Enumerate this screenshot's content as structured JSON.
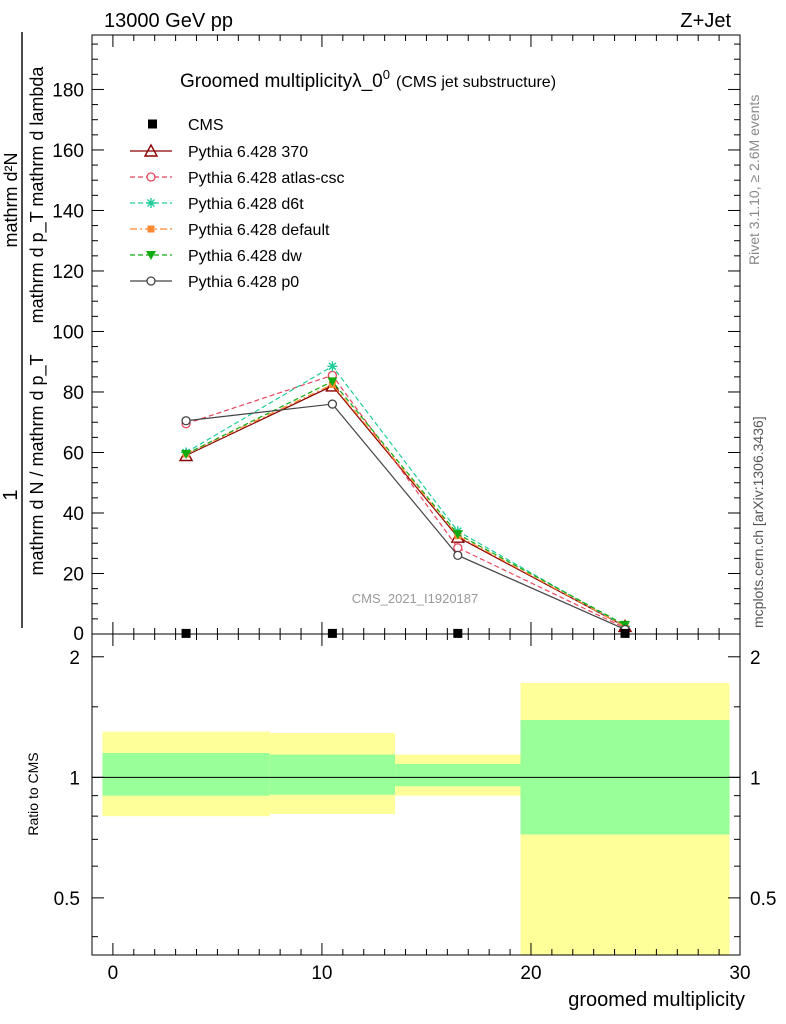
{
  "header": {
    "energy": "13000 GeV pp",
    "process": "Z+Jet"
  },
  "side_labels": {
    "rivet": "Rivet 3.1.10, ≥ 2.6M events",
    "mcplots": "mcplots.cern.ch [arXiv:1306.3436]"
  },
  "watermark": "CMS_2021_I1920187",
  "colors": {
    "band_inner": "#99ff99",
    "band_outer": "#ffff99",
    "cms": "#000000",
    "p370": "#8b0000",
    "atlas": "#e8445a",
    "d6t": "#1fcc99",
    "default": "#ff8833",
    "dw": "#11aa11",
    "p0": "#444444"
  },
  "chart_data": [
    {
      "type": "line",
      "title": "Groomed multiplicityλ_0",
      "title_sup": "0",
      "subtitle": "(CMS jet substructure)",
      "ylabel_num": "mathrm d²N",
      "ylabel_den": "mathrm d p_T mathrm d lambda",
      "ylabel_pre": "mathrm d N / mathrm d p_T",
      "ylabel_one": "1",
      "xlim": [
        -1,
        30
      ],
      "ylim": [
        0,
        198
      ],
      "yticks": [
        {
          "v": 20,
          "label": "20"
        },
        {
          "v": 40,
          "label": "40"
        },
        {
          "v": 60,
          "label": "60"
        },
        {
          "v": 80,
          "label": "80"
        },
        {
          "v": 100,
          "label": "100"
        },
        {
          "v": 120,
          "label": "120"
        },
        {
          "v": 140,
          "label": "140"
        },
        {
          "v": 160,
          "label": "160"
        },
        {
          "v": 180,
          "label": "180"
        }
      ],
      "y_zero_label": "0",
      "bins": [
        [
          -0.5,
          7.5
        ],
        [
          7.5,
          13.5
        ],
        [
          13.5,
          19.5
        ],
        [
          19.5,
          29.5
        ]
      ],
      "x": [
        3.5,
        10.5,
        16.5,
        24.5
      ],
      "cms_label": "CMS",
      "cms_values": [
        0.2,
        0.2,
        0.2,
        0.2
      ],
      "series": [
        {
          "name": "Pythia 6.428 370",
          "key": "p370",
          "marker": "triangle-open",
          "dash": "",
          "values": [
            59,
            82,
            32,
            2.5
          ]
        },
        {
          "name": "Pythia 6.428 atlas-csc",
          "key": "atlas",
          "marker": "circle-open",
          "dash": "5,3",
          "values": [
            69.5,
            85.5,
            28.5,
            2
          ]
        },
        {
          "name": "Pythia 6.428 d6t",
          "key": "d6t",
          "marker": "star",
          "dash": "5,3",
          "values": [
            60,
            88.5,
            34,
            2.5
          ]
        },
        {
          "name": "Pythia 6.428 default",
          "key": "default",
          "marker": "square",
          "dash": "7,3,2,3",
          "values": [
            59.5,
            82.5,
            32.5,
            2.5
          ]
        },
        {
          "name": "Pythia 6.428 dw",
          "key": "dw",
          "marker": "triangle-down",
          "dash": "5,3",
          "values": [
            59.5,
            83.5,
            33,
            3
          ]
        },
        {
          "name": "Pythia 6.428 p0",
          "key": "p0",
          "marker": "circle-open",
          "dash": "",
          "values": [
            70.5,
            76,
            26,
            1.5
          ]
        }
      ]
    },
    {
      "type": "area",
      "ylabel": "Ratio to CMS",
      "xlabel": "groomed multiplicity",
      "ylim": [
        0.36,
        2.28
      ],
      "ylog": true,
      "yticks": [
        {
          "v": 0.5,
          "label": "0.5"
        },
        {
          "v": 1,
          "label": "1"
        },
        {
          "v": 2,
          "label": "2"
        }
      ],
      "xticks": [
        {
          "v": 0,
          "label": "0"
        },
        {
          "v": 10,
          "label": "10"
        },
        {
          "v": 20,
          "label": "20"
        },
        {
          "v": 30,
          "label": "30"
        }
      ],
      "bins": [
        [
          -0.5,
          7.5
        ],
        [
          7.5,
          13.5
        ],
        [
          13.5,
          19.5
        ],
        [
          19.5,
          29.5
        ]
      ],
      "outer_band": [
        [
          0.8,
          1.3
        ],
        [
          0.81,
          1.29
        ],
        [
          0.9,
          1.14
        ],
        [
          0.35,
          1.72
        ]
      ],
      "inner_band": [
        [
          0.9,
          1.15
        ],
        [
          0.905,
          1.14
        ],
        [
          0.95,
          1.08
        ],
        [
          0.72,
          1.39
        ]
      ]
    }
  ]
}
